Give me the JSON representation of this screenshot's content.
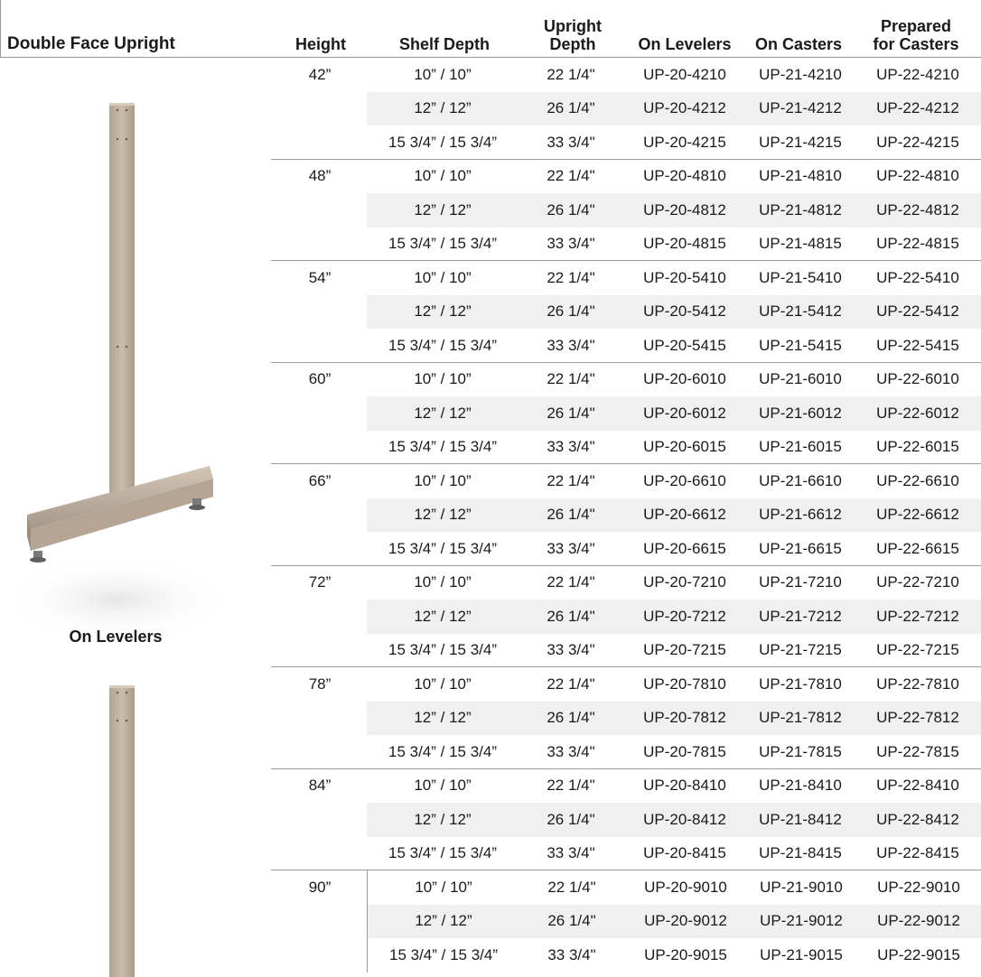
{
  "header": {
    "title": "Double Face Upright",
    "columns": {
      "height": "Height",
      "shelf_depth": "Shelf Depth",
      "upright_depth_line1": "Upright",
      "upright_depth_line2": "Depth",
      "on_levelers": "On Levelers",
      "on_casters": "On Casters",
      "prepared_line1": "Prepared",
      "prepared_line2": "for Casters"
    }
  },
  "images": {
    "caption_levelers": "On Levelers"
  },
  "colors": {
    "upright_tan": "#c2b3a1",
    "row_alt": "#f0f0f0",
    "rule": "#9a9a9a"
  },
  "groups": [
    {
      "height": "42”",
      "rows": [
        {
          "shelf": "10” / 10”",
          "upright": "22 1/4\"",
          "levelers": "UP-20-4210",
          "casters": "UP-21-4210",
          "prepared": "UP-22-4210"
        },
        {
          "shelf": "12” / 12”",
          "upright": "26 1/4\"",
          "levelers": "UP-20-4212",
          "casters": "UP-21-4212",
          "prepared": "UP-22-4212"
        },
        {
          "shelf": "15 3/4” / 15 3/4”",
          "upright": "33 3/4\"",
          "levelers": "UP-20-4215",
          "casters": "UP-21-4215",
          "prepared": "UP-22-4215"
        }
      ]
    },
    {
      "height": "48”",
      "rows": [
        {
          "shelf": "10” / 10”",
          "upright": "22 1/4\"",
          "levelers": "UP-20-4810",
          "casters": "UP-21-4810",
          "prepared": "UP-22-4810"
        },
        {
          "shelf": "12” / 12”",
          "upright": "26 1/4\"",
          "levelers": "UP-20-4812",
          "casters": "UP-21-4812",
          "prepared": "UP-22-4812"
        },
        {
          "shelf": "15 3/4” / 15 3/4”",
          "upright": "33 3/4\"",
          "levelers": "UP-20-4815",
          "casters": "UP-21-4815",
          "prepared": "UP-22-4815"
        }
      ]
    },
    {
      "height": "54”",
      "rows": [
        {
          "shelf": "10” / 10”",
          "upright": "22 1/4\"",
          "levelers": "UP-20-5410",
          "casters": "UP-21-5410",
          "prepared": "UP-22-5410"
        },
        {
          "shelf": "12” / 12”",
          "upright": "26 1/4\"",
          "levelers": "UP-20-5412",
          "casters": "UP-21-5412",
          "prepared": "UP-22-5412"
        },
        {
          "shelf": "15 3/4” / 15 3/4”",
          "upright": "33 3/4\"",
          "levelers": "UP-20-5415",
          "casters": "UP-21-5415",
          "prepared": "UP-22-5415"
        }
      ]
    },
    {
      "height": "60”",
      "rows": [
        {
          "shelf": "10” / 10”",
          "upright": "22 1/4\"",
          "levelers": "UP-20-6010",
          "casters": "UP-21-6010",
          "prepared": "UP-22-6010"
        },
        {
          "shelf": "12” / 12”",
          "upright": "26 1/4\"",
          "levelers": "UP-20-6012",
          "casters": "UP-21-6012",
          "prepared": "UP-22-6012"
        },
        {
          "shelf": "15 3/4” / 15 3/4”",
          "upright": "33 3/4\"",
          "levelers": "UP-20-6015",
          "casters": "UP-21-6015",
          "prepared": "UP-22-6015"
        }
      ]
    },
    {
      "height": "66”",
      "rows": [
        {
          "shelf": "10” / 10”",
          "upright": "22 1/4\"",
          "levelers": "UP-20-6610",
          "casters": "UP-21-6610",
          "prepared": "UP-22-6610"
        },
        {
          "shelf": "12” / 12”",
          "upright": "26 1/4\"",
          "levelers": "UP-20-6612",
          "casters": "UP-21-6612",
          "prepared": "UP-22-6612"
        },
        {
          "shelf": "15 3/4” / 15 3/4”",
          "upright": "33 3/4\"",
          "levelers": "UP-20-6615",
          "casters": "UP-21-6615",
          "prepared": "UP-22-6615"
        }
      ]
    },
    {
      "height": "72”",
      "rows": [
        {
          "shelf": "10” / 10”",
          "upright": "22 1/4\"",
          "levelers": "UP-20-7210",
          "casters": "UP-21-7210",
          "prepared": "UP-22-7210"
        },
        {
          "shelf": "12” / 12”",
          "upright": "26 1/4\"",
          "levelers": "UP-20-7212",
          "casters": "UP-21-7212",
          "prepared": "UP-22-7212"
        },
        {
          "shelf": "15 3/4” / 15 3/4”",
          "upright": "33 3/4\"",
          "levelers": "UP-20-7215",
          "casters": "UP-21-7215",
          "prepared": "UP-22-7215"
        }
      ]
    },
    {
      "height": "78”",
      "rows": [
        {
          "shelf": "10” / 10”",
          "upright": "22 1/4\"",
          "levelers": "UP-20-7810",
          "casters": "UP-21-7810",
          "prepared": "UP-22-7810"
        },
        {
          "shelf": "12” / 12”",
          "upright": "26 1/4\"",
          "levelers": "UP-20-7812",
          "casters": "UP-21-7812",
          "prepared": "UP-22-7812"
        },
        {
          "shelf": "15 3/4” / 15 3/4”",
          "upright": "33 3/4\"",
          "levelers": "UP-20-7815",
          "casters": "UP-21-7815",
          "prepared": "UP-22-7815"
        }
      ]
    },
    {
      "height": "84”",
      "rows": [
        {
          "shelf": "10” / 10”",
          "upright": "22 1/4\"",
          "levelers": "UP-20-8410",
          "casters": "UP-21-8410",
          "prepared": "UP-22-8410"
        },
        {
          "shelf": "12” / 12”",
          "upright": "26 1/4\"",
          "levelers": "UP-20-8412",
          "casters": "UP-21-8412",
          "prepared": "UP-22-8412"
        },
        {
          "shelf": "15 3/4” / 15 3/4”",
          "upright": "33 3/4\"",
          "levelers": "UP-20-8415",
          "casters": "UP-21-8415",
          "prepared": "UP-22-8415"
        }
      ]
    },
    {
      "height": "90”",
      "rows": [
        {
          "shelf": "10” / 10”",
          "upright": "22 1/4\"",
          "levelers": "UP-20-9010",
          "casters": "UP-21-9010",
          "prepared": "UP-22-9010"
        },
        {
          "shelf": "12” / 12”",
          "upright": "26 1/4\"",
          "levelers": "UP-20-9012",
          "casters": "UP-21-9012",
          "prepared": "UP-22-9012"
        },
        {
          "shelf": "15 3/4” / 15 3/4”",
          "upright": "33 3/4\"",
          "levelers": "UP-20-9015",
          "casters": "UP-21-9015",
          "prepared": "UP-22-9015"
        }
      ]
    }
  ]
}
